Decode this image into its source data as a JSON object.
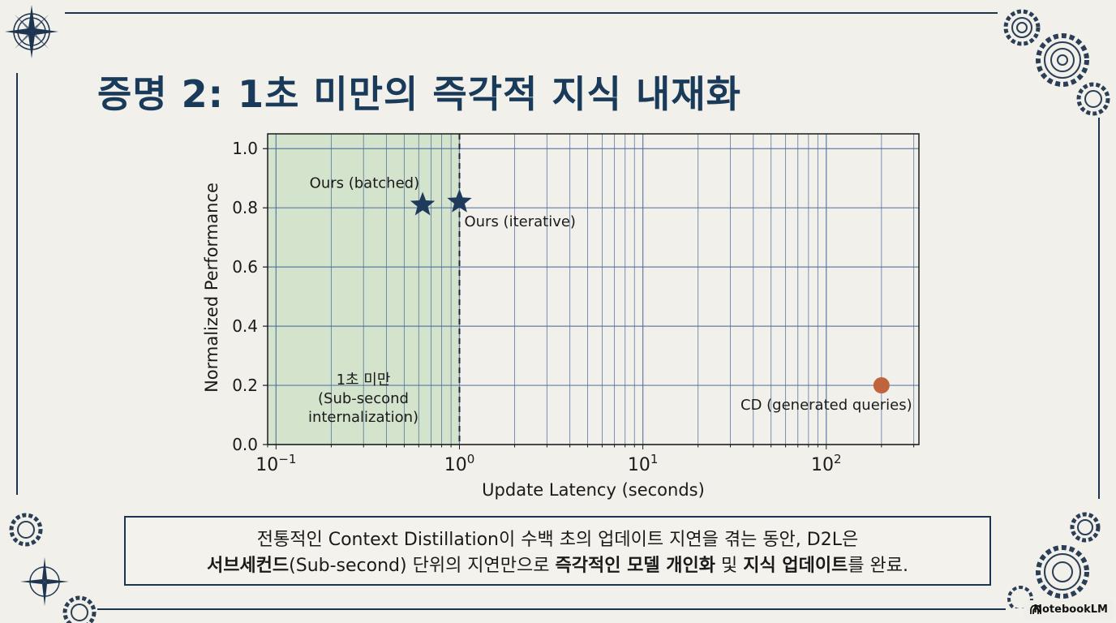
{
  "slide": {
    "title": "증명 2: 1초 미만의 즉각적 지식 내재화",
    "caption_line1": "전통적인 Context Distillation이 수백 초의 업데이트 지연을 겪는 동안, D2L은",
    "caption_line2": {
      "p1": "서브세컨드",
      "p2": "(Sub-second) 단위의 지연만으로 ",
      "p3": "즉각적인 모델 개인화",
      "p4": " 및 ",
      "p5": "지식 업데이트",
      "p6": "를 완료."
    },
    "badge": "NotebookLM"
  },
  "chart_data": {
    "type": "scatter",
    "xlabel": "Update Latency (seconds)",
    "ylabel": "Normalized Performance",
    "xscale": "log",
    "xlim": [
      0.09,
      320
    ],
    "ylim": [
      0.0,
      1.05
    ],
    "x_ticks": [
      {
        "value": 0.1,
        "base": "10",
        "exp": "−1"
      },
      {
        "value": 1,
        "base": "10",
        "exp": "0"
      },
      {
        "value": 10,
        "base": "10",
        "exp": "1"
      },
      {
        "value": 100,
        "base": "10",
        "exp": "2"
      }
    ],
    "y_ticks": [
      0.0,
      0.2,
      0.4,
      0.6,
      0.8,
      1.0
    ],
    "y_tick_labels": [
      "0.0",
      "0.2",
      "0.4",
      "0.6",
      "0.8",
      "1.0"
    ],
    "grid": true,
    "shaded_region": {
      "x": [
        0.09,
        1.0
      ],
      "color": "#d4e3cc",
      "label_lines": [
        "1초 미만",
        "(Sub-second",
        "internalization)"
      ]
    },
    "vline": {
      "x": 1.0,
      "style": "dashed"
    },
    "points": [
      {
        "label": "Ours (batched)",
        "x": 0.63,
        "y": 0.81,
        "marker": "star",
        "color": "#1e3a5c",
        "label_position": "above-left"
      },
      {
        "label": "Ours (iterative)",
        "x": 1.0,
        "y": 0.82,
        "marker": "star",
        "color": "#1e3a5c",
        "label_position": "below-right"
      },
      {
        "label": "CD (generated queries)",
        "x": 200,
        "y": 0.2,
        "marker": "circle",
        "color": "#c0643e",
        "label_position": "below"
      }
    ],
    "colors": {
      "axis": "#1a1a1a",
      "grid": "#4a6a9a",
      "star": "#1e3a5c",
      "cd": "#c0643e"
    }
  }
}
